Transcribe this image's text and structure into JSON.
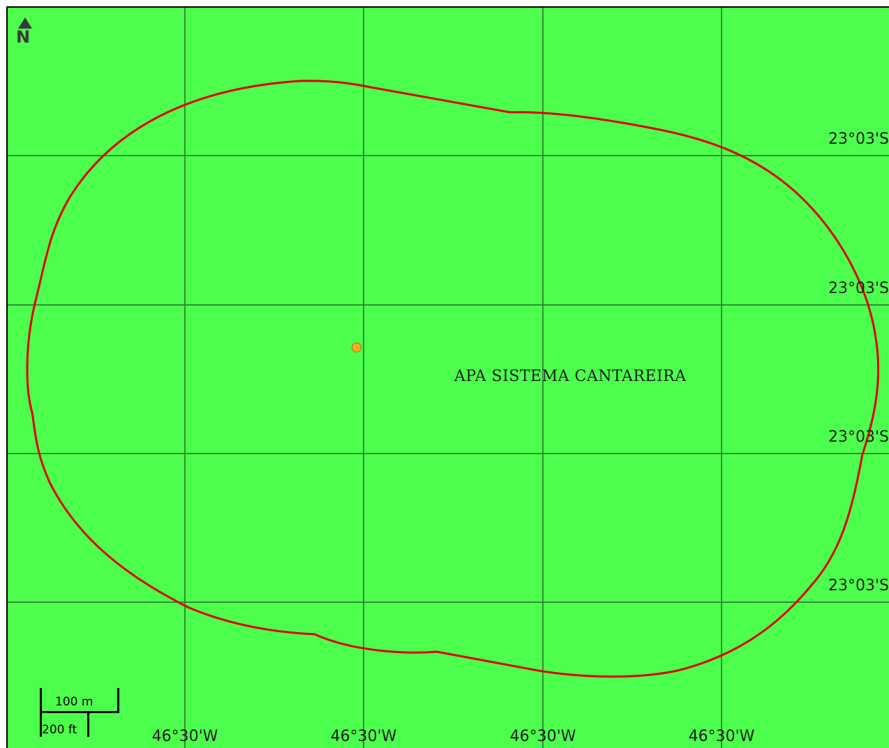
{
  "map": {
    "background_color": "#4cff4c",
    "boundary_color": "#e00000",
    "gridline_color": "#2f7a2f",
    "area_name": "APA SISTEMA CANTAREIRA",
    "north_arrow": {
      "icon": "north-arrow-icon",
      "letter": "N"
    },
    "latitude_labels": [
      "23°03'S",
      "23°03'S",
      "23°03'S",
      "23°03'S"
    ],
    "longitude_labels": [
      "46°30'W",
      "46°30'W",
      "46°30'W",
      "46°30'W"
    ],
    "point_marker": {
      "color": "#ffaa2a"
    },
    "scale_bar": {
      "metric_label": "100 m",
      "imperial_label": "200 ft"
    }
  }
}
